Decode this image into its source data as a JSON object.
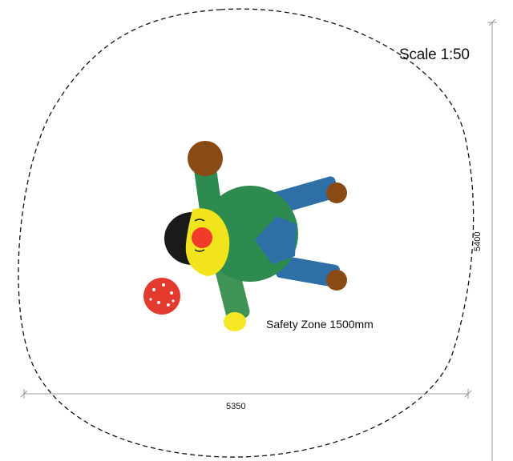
{
  "labels": {
    "scale": "Scale 1:50",
    "safety_zone": "Safety Zone 1500mm",
    "width_dimension": "5350",
    "height_dimension": "5400"
  },
  "colors": {
    "outline": "#111111",
    "body_green": "#2e8b4f",
    "face_yellow": "#f2e41c",
    "nose_red": "#f03a2a",
    "hair_black": "#1a1a1a",
    "sleeve_blue": "#2f6fa8",
    "hand_brown": "#8a4a14",
    "mushroom_red": "#e23a2c",
    "foot_yellow": "#f5e626",
    "dimension_line": "#999999"
  }
}
